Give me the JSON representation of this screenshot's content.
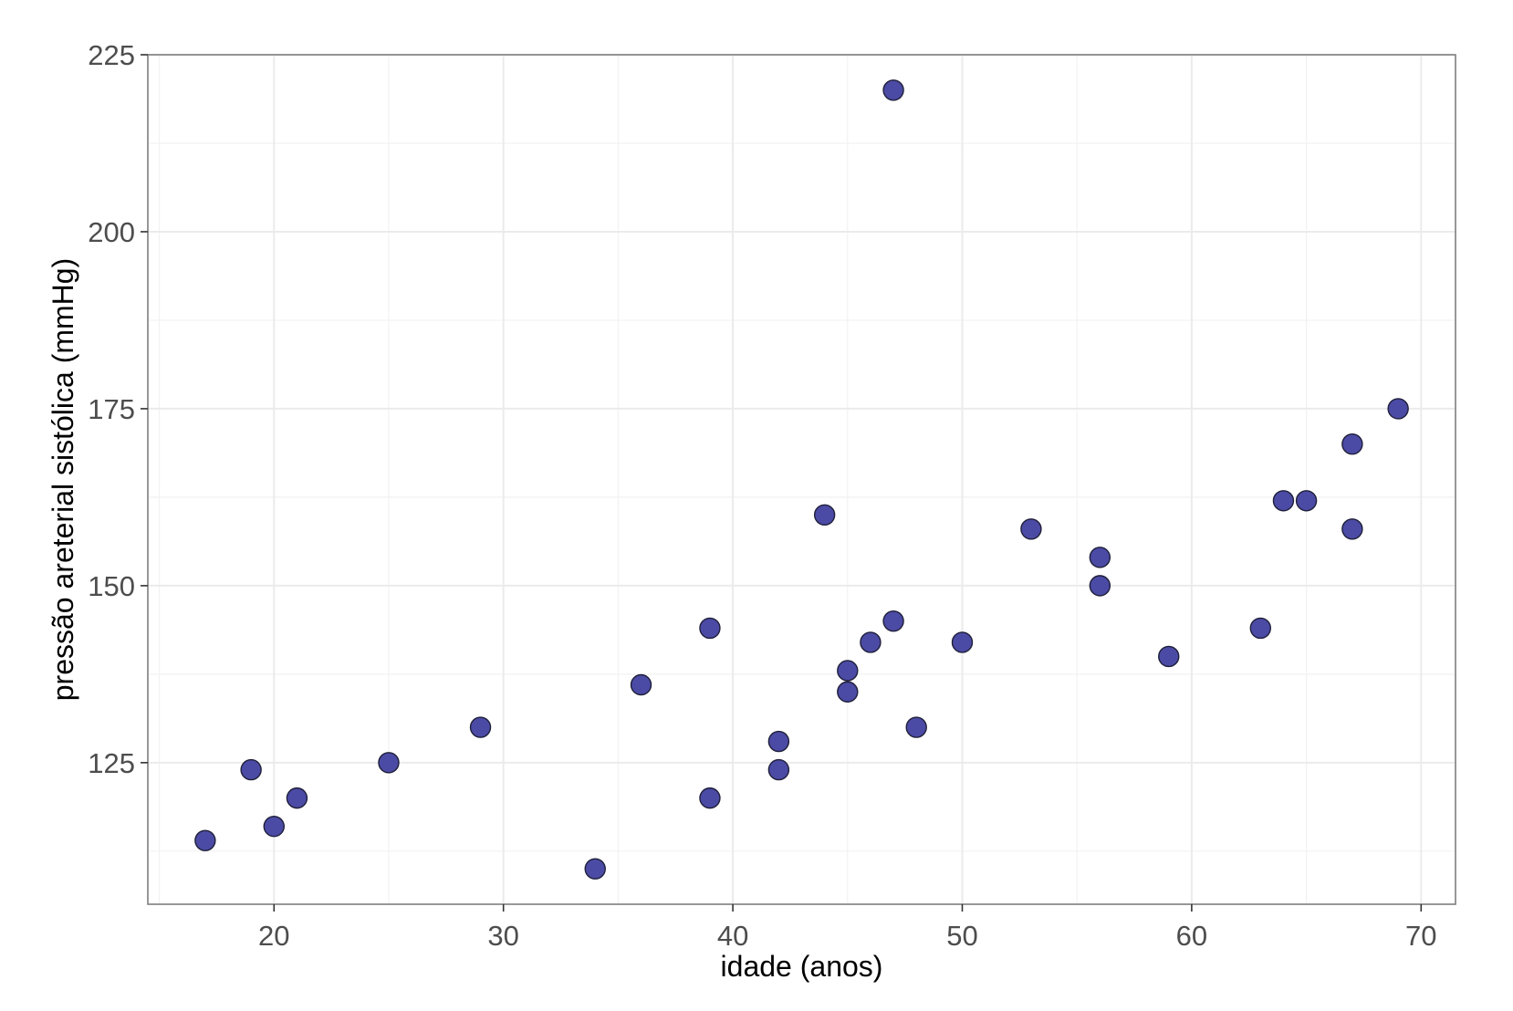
{
  "chart_data": {
    "type": "scatter",
    "title": "",
    "xlabel": "idade (anos)",
    "ylabel": "pressão areterial sistólica (mmHg)",
    "xlim": [
      14.5,
      71.5
    ],
    "ylim": [
      105,
      225
    ],
    "x_ticks": [
      "20",
      "30",
      "40",
      "50",
      "60",
      "70"
    ],
    "y_ticks": [
      "125",
      "150",
      "175",
      "200",
      "225"
    ],
    "grid": true,
    "point_color": "#4B4BA5",
    "point_edge_color": "#1f1f3a",
    "series": [
      {
        "x": [
          17,
          19,
          20,
          21,
          25,
          29,
          34,
          36,
          39,
          39,
          42,
          42,
          44,
          45,
          45,
          46,
          47,
          47,
          48,
          50,
          53,
          56,
          56,
          59,
          63,
          64,
          65,
          67,
          67,
          69
        ],
        "y": [
          114,
          124,
          116,
          120,
          125,
          130,
          110,
          136,
          144,
          120,
          128,
          124,
          160,
          138,
          135,
          142,
          220,
          145,
          130,
          142,
          158,
          154,
          150,
          140,
          144,
          162,
          162,
          170,
          158,
          175
        ]
      }
    ]
  }
}
